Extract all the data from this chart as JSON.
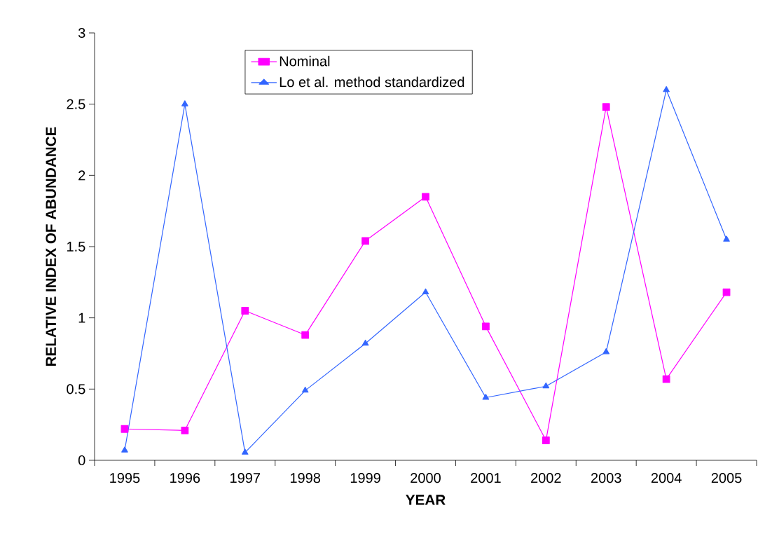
{
  "chart_data": {
    "type": "line",
    "xlabel": "YEAR",
    "ylabel": "RELATIVE INDEX OF ABUNDANCE",
    "categories": [
      "1995",
      "1996",
      "1997",
      "1998",
      "1999",
      "2000",
      "2001",
      "2002",
      "2003",
      "2004",
      "2005"
    ],
    "series": [
      {
        "name": "Nominal",
        "color": "#ff00ff",
        "marker": "square",
        "values": [
          0.22,
          0.21,
          1.05,
          0.88,
          1.54,
          1.85,
          0.94,
          0.14,
          2.48,
          0.57,
          1.18
        ]
      },
      {
        "name": "Lo et al. method standardized",
        "color": "#3366ff",
        "marker": "triangle",
        "values": [
          0.07,
          2.5,
          0.055,
          0.49,
          0.82,
          1.18,
          0.44,
          0.52,
          0.76,
          2.6,
          1.55
        ]
      }
    ],
    "ylim": [
      0,
      3
    ],
    "yticks": [
      0,
      0.5,
      1,
      1.5,
      2,
      2.5,
      3
    ],
    "grid": false,
    "legend": "top",
    "line_style": "solid"
  }
}
